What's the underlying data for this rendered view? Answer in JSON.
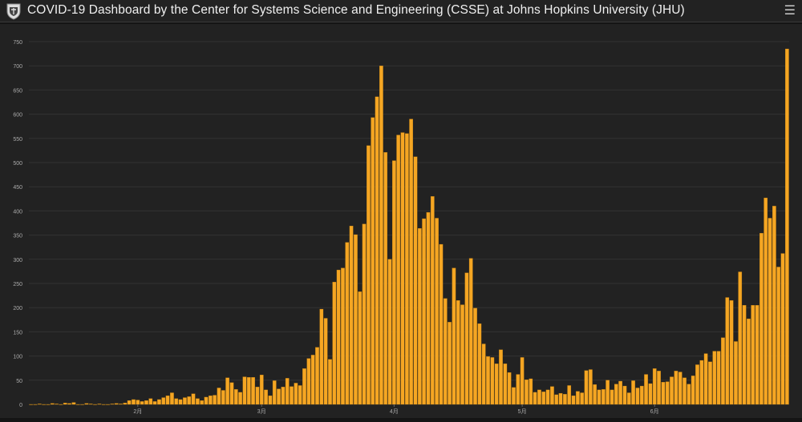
{
  "header": {
    "title": "COVID-19 Dashboard by the Center for Systems Science and Engineering (CSSE) at Johns Hopkins University (JHU)",
    "menu_icon": "hamburger-menu-icon",
    "logo_icon": "jhu-shield-icon"
  },
  "colors": {
    "bar": "#f5a623",
    "bar_stroke": "#c07f10",
    "background": "#222222",
    "grid": "#333333",
    "tick_text": "#aaaaaa"
  },
  "chart_data": {
    "type": "bar",
    "title": "",
    "xlabel": "",
    "ylabel": "",
    "ylim": [
      0,
      750
    ],
    "yticks": [
      0,
      50,
      100,
      150,
      200,
      250,
      300,
      350,
      400,
      450,
      500,
      550,
      600,
      650,
      700,
      750
    ],
    "grid": true,
    "month_labels": [
      {
        "label": "2月",
        "index": 25
      },
      {
        "label": "3月",
        "index": 54
      },
      {
        "label": "4月",
        "index": 85
      },
      {
        "label": "5月",
        "index": 115
      },
      {
        "label": "6月",
        "index": 146
      }
    ],
    "values": [
      0,
      0,
      1,
      0,
      0,
      2,
      1,
      0,
      3,
      2,
      4,
      0,
      0,
      2,
      1,
      0,
      1,
      0,
      0,
      1,
      2,
      1,
      3,
      8,
      10,
      9,
      6,
      8,
      12,
      6,
      10,
      14,
      18,
      24,
      12,
      10,
      14,
      16,
      22,
      12,
      8,
      15,
      18,
      19,
      34,
      29,
      55,
      45,
      31,
      25,
      57,
      56,
      56,
      36,
      61,
      30,
      18,
      49,
      32,
      36,
      54,
      37,
      44,
      39,
      74,
      95,
      102,
      118,
      197,
      178,
      93,
      253,
      278,
      282,
      335,
      369,
      351,
      233,
      373,
      535,
      593,
      636,
      700,
      521,
      300,
      504,
      557,
      562,
      560,
      590,
      512,
      364,
      384,
      397,
      430,
      385,
      331,
      219,
      170,
      282,
      215,
      206,
      272,
      302,
      199,
      167,
      125,
      99,
      97,
      84,
      113,
      84,
      66,
      35,
      62,
      97,
      51,
      53,
      25,
      30,
      26,
      30,
      37,
      20,
      23,
      21,
      39,
      18,
      27,
      24,
      70,
      72,
      41,
      30,
      31,
      50,
      30,
      42,
      48,
      38,
      24,
      49,
      34,
      38,
      62,
      43,
      74,
      69,
      46,
      47,
      57,
      69,
      67,
      55,
      42,
      59,
      82,
      91,
      105,
      88,
      110,
      110,
      138,
      221,
      215,
      130,
      274,
      205,
      177,
      205,
      205,
      354,
      427,
      385,
      410,
      284,
      312,
      735
    ]
  }
}
